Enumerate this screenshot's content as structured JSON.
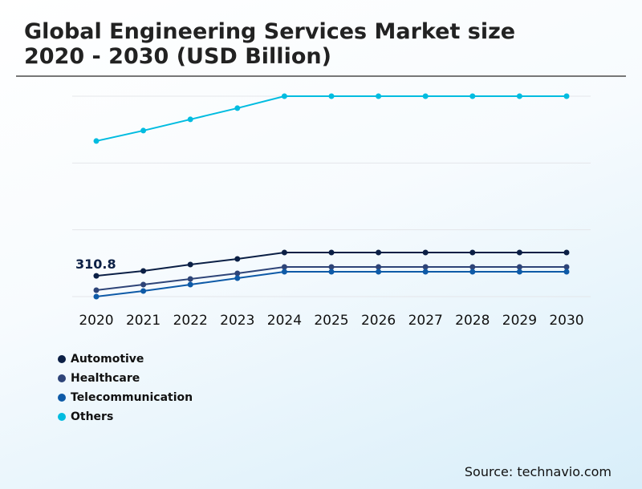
{
  "title_line1": "Global Engineering Services Market size",
  "title_line2": "2020 - 2030 (USD Billion)",
  "source": "Source: technavio.com",
  "chart_data": {
    "type": "line",
    "title": "Global Engineering Services Market size 2020 - 2030 (USD Billion)",
    "categories": [
      "2020",
      "2021",
      "2022",
      "2023",
      "2024",
      "2025",
      "2026",
      "2027",
      "2028",
      "2029",
      "2030"
    ],
    "ylim": [
      0,
      3000
    ],
    "grid": true,
    "y_tick_labels_shown": false,
    "legend_position": "bottom-left",
    "annotations": [
      {
        "series": "Automotive",
        "category": "2020",
        "text": "310.8"
      }
    ],
    "series": [
      {
        "name": "Automotive",
        "color": "#0b1f45",
        "values": [
          310.8,
          384,
          480,
          564,
          660,
          660,
          660,
          660,
          660,
          660,
          660
        ]
      },
      {
        "name": "Healthcare",
        "color": "#2e4478",
        "values": [
          96,
          180,
          264,
          348,
          444,
          444,
          444,
          444,
          444,
          444,
          444
        ]
      },
      {
        "name": "Telecommunication",
        "color": "#0e5aa7",
        "values": [
          0,
          84,
          180,
          276,
          372,
          372,
          372,
          372,
          372,
          372,
          372
        ]
      },
      {
        "name": "Others",
        "color": "#00bce0",
        "values": [
          2329,
          2485,
          2653,
          2821,
          3000,
          3000,
          3000,
          3000,
          3000,
          3000,
          3000
        ]
      }
    ]
  }
}
